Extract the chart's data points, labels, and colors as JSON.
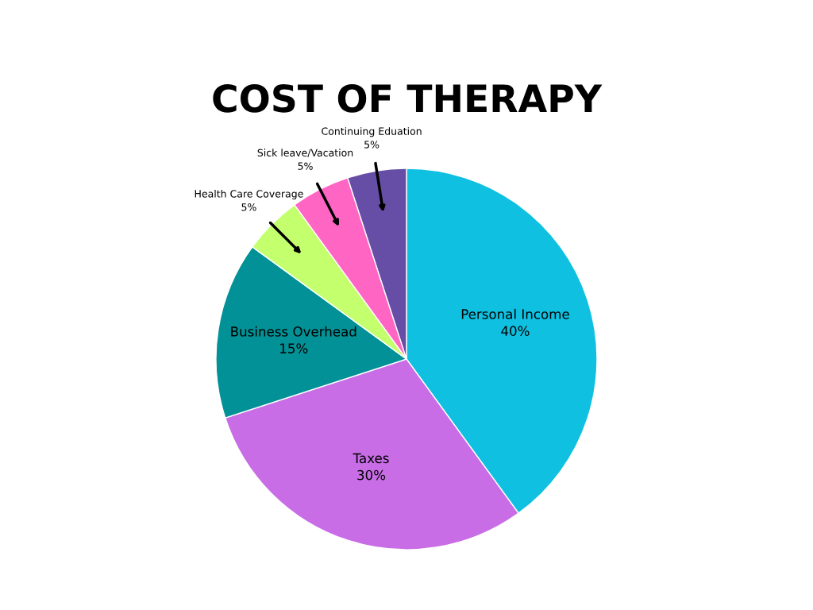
{
  "chart_data": {
    "type": "pie",
    "title": "COST OF THERAPY",
    "categories": [
      "Personal Income",
      "Taxes",
      "Business Overhead",
      "Health Care Coverage",
      "Sick leave/Vacation",
      "Continuing Eduation"
    ],
    "values": [
      40,
      30,
      15,
      5,
      5,
      5
    ],
    "value_labels": [
      "40%",
      "30%",
      "15%",
      "5%",
      "5%",
      "5%"
    ],
    "colors": [
      "#0fc0e0",
      "#c86de6",
      "#029196",
      "#c4ff6e",
      "#ff66c4",
      "#664ea6"
    ]
  }
}
